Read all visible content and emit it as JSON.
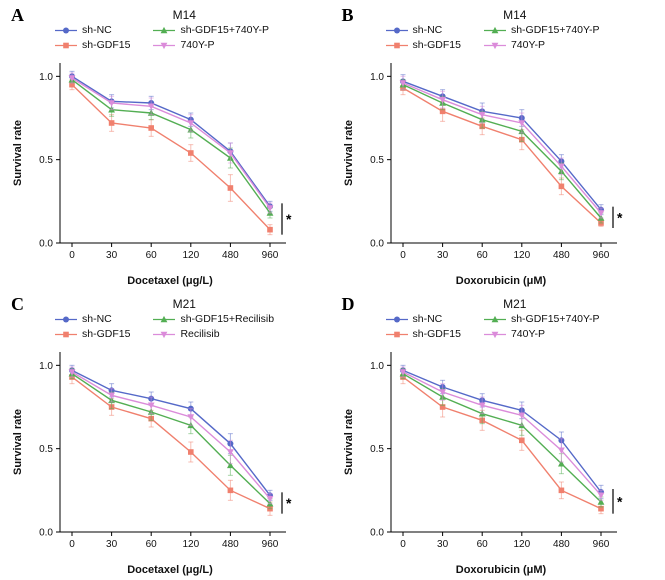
{
  "chart_data": {
    "type": "line",
    "panels": [
      {
        "letter": "A",
        "title": "M14",
        "xlabel": "Docetaxel (μg/L)",
        "ylabel": "Survival rate",
        "categories": [
          "0",
          "30",
          "60",
          "120",
          "480",
          "960"
        ],
        "yticks": [
          0.0,
          0.5,
          1.0
        ],
        "ylim": [
          0,
          1.08
        ],
        "significance": "*",
        "series": [
          {
            "name": "sh-NC",
            "color": "#5569C8",
            "marker": "circle",
            "values": [
              1.0,
              0.85,
              0.84,
              0.74,
              0.55,
              0.22
            ],
            "errors": [
              0.03,
              0.04,
              0.04,
              0.04,
              0.05,
              0.03
            ]
          },
          {
            "name": "sh-GDF15",
            "color": "#F0806E",
            "marker": "square",
            "values": [
              0.95,
              0.72,
              0.69,
              0.54,
              0.33,
              0.08
            ],
            "errors": [
              0.03,
              0.05,
              0.05,
              0.05,
              0.08,
              0.03
            ]
          },
          {
            "name": "sh-GDF15+740Y-P",
            "color": "#53AE53",
            "marker": "triangle",
            "values": [
              0.98,
              0.8,
              0.78,
              0.68,
              0.51,
              0.18
            ],
            "errors": [
              0.02,
              0.04,
              0.04,
              0.05,
              0.06,
              0.03
            ]
          },
          {
            "name": "740Y-P",
            "color": "#DB8CDA",
            "marker": "triangle-down",
            "values": [
              0.99,
              0.84,
              0.82,
              0.72,
              0.54,
              0.21
            ],
            "errors": [
              0.03,
              0.04,
              0.05,
              0.05,
              0.06,
              0.03
            ]
          }
        ]
      },
      {
        "letter": "B",
        "title": "M14",
        "xlabel": "Doxorubicin (μM)",
        "ylabel": "Survival rate",
        "categories": [
          "0",
          "30",
          "60",
          "120",
          "480",
          "960"
        ],
        "yticks": [
          0.0,
          0.5,
          1.0
        ],
        "ylim": [
          0,
          1.08
        ],
        "significance": "*",
        "series": [
          {
            "name": "sh-NC",
            "color": "#5569C8",
            "marker": "circle",
            "values": [
              0.97,
              0.88,
              0.79,
              0.75,
              0.49,
              0.2
            ],
            "errors": [
              0.04,
              0.04,
              0.05,
              0.05,
              0.04,
              0.03
            ]
          },
          {
            "name": "sh-GDF15",
            "color": "#F0806E",
            "marker": "square",
            "values": [
              0.93,
              0.79,
              0.7,
              0.62,
              0.34,
              0.12
            ],
            "errors": [
              0.04,
              0.06,
              0.05,
              0.06,
              0.05,
              0.02
            ]
          },
          {
            "name": "sh-GDF15+740Y-P",
            "color": "#53AE53",
            "marker": "triangle",
            "values": [
              0.95,
              0.84,
              0.74,
              0.67,
              0.43,
              0.15
            ],
            "errors": [
              0.03,
              0.04,
              0.05,
              0.06,
              0.05,
              0.03
            ]
          },
          {
            "name": "740Y-P",
            "color": "#DB8CDA",
            "marker": "triangle-down",
            "values": [
              0.96,
              0.86,
              0.77,
              0.72,
              0.46,
              0.18
            ],
            "errors": [
              0.04,
              0.05,
              0.05,
              0.06,
              0.05,
              0.03
            ]
          }
        ]
      },
      {
        "letter": "C",
        "title": "M21",
        "xlabel": "Docetaxel (μg/L)",
        "ylabel": "Survival rate",
        "categories": [
          "0",
          "30",
          "60",
          "120",
          "480",
          "960"
        ],
        "yticks": [
          0.0,
          0.5,
          1.0
        ],
        "ylim": [
          0,
          1.08
        ],
        "significance": "*",
        "series": [
          {
            "name": "sh-NC",
            "color": "#5569C8",
            "marker": "circle",
            "values": [
              0.97,
              0.85,
              0.8,
              0.74,
              0.53,
              0.22
            ],
            "errors": [
              0.03,
              0.04,
              0.04,
              0.04,
              0.06,
              0.03
            ]
          },
          {
            "name": "sh-GDF15",
            "color": "#F0806E",
            "marker": "square",
            "values": [
              0.93,
              0.75,
              0.68,
              0.48,
              0.25,
              0.14
            ],
            "errors": [
              0.04,
              0.05,
              0.05,
              0.06,
              0.06,
              0.04
            ]
          },
          {
            "name": "sh-GDF15+Recilisib",
            "color": "#53AE53",
            "marker": "triangle",
            "values": [
              0.95,
              0.79,
              0.72,
              0.64,
              0.4,
              0.17
            ],
            "errors": [
              0.03,
              0.05,
              0.05,
              0.05,
              0.06,
              0.03
            ]
          },
          {
            "name": "Recilisib",
            "color": "#DB8CDA",
            "marker": "triangle-down",
            "values": [
              0.96,
              0.82,
              0.76,
              0.69,
              0.48,
              0.2
            ],
            "errors": [
              0.03,
              0.04,
              0.05,
              0.05,
              0.07,
              0.03
            ]
          }
        ]
      },
      {
        "letter": "D",
        "title": "M21",
        "xlabel": "Doxorubicin (μM)",
        "ylabel": "Survival rate",
        "categories": [
          "0",
          "30",
          "60",
          "120",
          "480",
          "960"
        ],
        "yticks": [
          0.0,
          0.5,
          1.0
        ],
        "ylim": [
          0,
          1.08
        ],
        "significance": "*",
        "series": [
          {
            "name": "sh-NC",
            "color": "#5569C8",
            "marker": "circle",
            "values": [
              0.97,
              0.87,
              0.79,
              0.73,
              0.55,
              0.24
            ],
            "errors": [
              0.03,
              0.04,
              0.04,
              0.05,
              0.05,
              0.04
            ]
          },
          {
            "name": "sh-GDF15",
            "color": "#F0806E",
            "marker": "square",
            "values": [
              0.93,
              0.75,
              0.67,
              0.55,
              0.25,
              0.14
            ],
            "errors": [
              0.04,
              0.06,
              0.06,
              0.06,
              0.05,
              0.03
            ]
          },
          {
            "name": "sh-GDF15+740Y-P",
            "color": "#53AE53",
            "marker": "triangle",
            "values": [
              0.95,
              0.81,
              0.71,
              0.64,
              0.41,
              0.18
            ],
            "errors": [
              0.03,
              0.05,
              0.06,
              0.06,
              0.06,
              0.03
            ]
          },
          {
            "name": "740Y-P",
            "color": "#DB8CDA",
            "marker": "triangle-down",
            "values": [
              0.96,
              0.84,
              0.76,
              0.7,
              0.49,
              0.22
            ],
            "errors": [
              0.03,
              0.05,
              0.05,
              0.06,
              0.07,
              0.03
            ]
          }
        ]
      }
    ]
  }
}
